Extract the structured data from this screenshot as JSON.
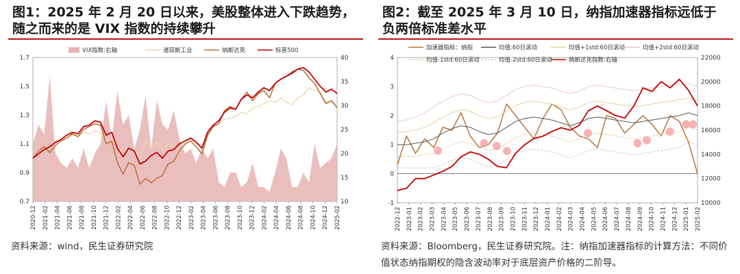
{
  "figure1": {
    "title_line1": "图1：2025 年 2 月 20 日以来，美股整体进入下跌趋势，",
    "title_line2": "随之而来的是 VIX 指数的持续攀升",
    "source": "资料来源：wind，民生证券研究院"
  },
  "figure2": {
    "title_line1": "图2：截至 2025 年 3 月 10 日，纳指加速器指标远低于",
    "title_line2": "负两倍标准差水平",
    "source": "资料来源：Bloomberg，民生证券研究院。注：纳指加速器指标的计算方法：不同价值状态纳指期权的隐含波动率对于底层资产价格的二阶导。"
  },
  "colors": {
    "vix": "#e8b3b3",
    "dow": "#ecd8b0",
    "nasdaq": "#b8743a",
    "sp500": "#c00000",
    "accel": "#b8743a",
    "mean": "#555555",
    "plus1": "#e8cfa0",
    "plus2": "#f0c4c4",
    "minus1": "#e2c89a",
    "minus2": "#c8c8c8",
    "nasdaq_right": "#c00000",
    "marker": "#f2a0a0"
  },
  "chart_data": [
    {
      "type": "line",
      "legend_position": "top",
      "y_left": {
        "min": 0.7,
        "max": 1.7,
        "ticks": [
          "0.7",
          "0.9",
          "1.1",
          "1.3",
          "1.5",
          "1.7"
        ]
      },
      "y_right": {
        "min": 10,
        "max": 40,
        "ticks": [
          "10",
          "15",
          "20",
          "25",
          "30",
          "35",
          "40"
        ]
      },
      "x_ticks": [
        "2020-12",
        "2021-02",
        "2021-04",
        "2021-06",
        "2021-08",
        "2021-10",
        "2021-12",
        "2022-02",
        "2022-04",
        "2022-06",
        "2022-08",
        "2022-10",
        "2022-12",
        "2023-02",
        "2023-04",
        "2023-06",
        "2023-08",
        "2023-10",
        "2023-12",
        "2024-02",
        "2024-04",
        "2024-06",
        "2024-08",
        "2024-10",
        "2024-12",
        "2025-02"
      ],
      "series": [
        {
          "name": "VIX指数:右轴",
          "kind": "area",
          "axis": "right",
          "values": [
            22,
            26,
            24,
            36,
            20,
            18,
            17,
            19,
            17,
            21,
            17,
            20,
            22,
            31,
            23,
            33,
            26,
            28,
            21,
            25,
            32,
            21,
            31,
            26,
            25,
            29,
            23,
            20,
            21,
            18,
            21,
            19,
            21,
            14,
            13,
            16,
            16,
            13,
            14,
            18,
            13,
            13,
            12,
            16,
            21,
            19,
            13,
            13,
            16,
            14,
            22,
            17,
            18,
            19,
            22
          ]
        },
        {
          "name": "道琼斯工业",
          "kind": "line",
          "axis": "left",
          "values": [
            1.0,
            1.02,
            1.05,
            1.08,
            1.12,
            1.13,
            1.14,
            1.16,
            1.15,
            1.18,
            1.17,
            1.19,
            1.18,
            1.12,
            1.13,
            1.08,
            1.04,
            1.06,
            1.07,
            1.0,
            1.12,
            1.07,
            1.11,
            1.06,
            1.1,
            1.08,
            1.06,
            1.08,
            1.14,
            1.13,
            1.07,
            1.15,
            1.23,
            1.24,
            1.27,
            1.28,
            1.29,
            1.32,
            1.31,
            1.35,
            1.36,
            1.38,
            1.4,
            1.39,
            1.42,
            1.39,
            1.37,
            1.42,
            1.44,
            1.49,
            1.47,
            1.46,
            1.39,
            1.4,
            1.37
          ]
        },
        {
          "name": "纳斯达克",
          "kind": "line",
          "axis": "left",
          "values": [
            1.0,
            1.05,
            1.08,
            1.04,
            1.09,
            1.12,
            1.14,
            1.17,
            1.15,
            1.2,
            1.22,
            1.24,
            1.23,
            1.1,
            1.12,
            0.97,
            0.89,
            0.97,
            0.95,
            0.82,
            0.86,
            0.83,
            0.86,
            0.88,
            0.96,
            0.98,
            1.05,
            1.1,
            1.12,
            1.08,
            1.03,
            1.16,
            1.22,
            1.24,
            1.33,
            1.36,
            1.34,
            1.41,
            1.46,
            1.4,
            1.45,
            1.47,
            1.42,
            1.52,
            1.55,
            1.57,
            1.6,
            1.62,
            1.61,
            1.56,
            1.52,
            1.45,
            1.38,
            1.4,
            1.35
          ]
        },
        {
          "name": "标普500",
          "kind": "line",
          "axis": "left",
          "values": [
            1.0,
            1.03,
            1.06,
            1.08,
            1.11,
            1.13,
            1.16,
            1.18,
            1.17,
            1.22,
            1.23,
            1.26,
            1.25,
            1.16,
            1.18,
            1.07,
            1.01,
            1.07,
            1.05,
            0.96,
            0.98,
            1.02,
            1.04,
            1.0,
            1.05,
            1.06,
            1.1,
            1.12,
            1.14,
            1.11,
            1.07,
            1.18,
            1.23,
            1.26,
            1.32,
            1.35,
            1.34,
            1.41,
            1.44,
            1.42,
            1.46,
            1.49,
            1.47,
            1.52,
            1.55,
            1.57,
            1.59,
            1.62,
            1.63,
            1.6,
            1.55,
            1.5,
            1.46,
            1.48,
            1.45
          ]
        }
      ]
    },
    {
      "type": "line",
      "legend_position": "top",
      "y_left": {
        "min": -1,
        "max": 4,
        "ticks": [
          "-1",
          "0",
          "1",
          "2",
          "3",
          "4"
        ]
      },
      "y_right": {
        "min": 10000,
        "max": 22000,
        "ticks": [
          "10000",
          "12000",
          "14000",
          "16000",
          "18000",
          "20000",
          "22000"
        ]
      },
      "x_ticks": [
        "2022-12",
        "2023-01",
        "2023-02",
        "2023-03",
        "2023-04",
        "2023-05",
        "2023-06",
        "2023-07",
        "2023-08",
        "2023-09",
        "2023-10",
        "2023-11",
        "2023-12",
        "2024-01",
        "2024-02",
        "2024-03",
        "2024-04",
        "2024-05",
        "2024-06",
        "2024-07",
        "2024-08",
        "2024-09",
        "2024-10",
        "2024-11",
        "2024-12",
        "2025-01",
        "2025-02"
      ],
      "series": [
        {
          "name": "加速器指标：纳指",
          "kind": "line",
          "axis": "left",
          "values": [
            0.3,
            1.3,
            0.7,
            1.2,
            0.9,
            1.6,
            1.5,
            2.1,
            1.3,
            0.9,
            1.0,
            1.4,
            2.4,
            2.0,
            1.6,
            1.2,
            1.9,
            2.4,
            2.2,
            1.6,
            1.3,
            1.2,
            0.9,
            2.0,
            1.9,
            1.4,
            1.7,
            2.0,
            1.7,
            1.3,
            2.0,
            1.8,
            1.1,
            0.0
          ]
        },
        {
          "name": "均值:60日滚动",
          "kind": "line",
          "axis": "left",
          "values": [
            1.0,
            1.0,
            1.05,
            1.1,
            1.2,
            1.4,
            1.55,
            1.65,
            1.6,
            1.45,
            1.35,
            1.4,
            1.6,
            1.8,
            1.9,
            1.95,
            1.9,
            1.85,
            1.75,
            1.65,
            1.75,
            1.9,
            1.95,
            1.9,
            1.85,
            1.8,
            1.75,
            1.8,
            1.85,
            1.9,
            1.95,
            2.0,
            2.1,
            2.0
          ]
        },
        {
          "name": "均值+1std:60日滚动",
          "kind": "line",
          "axis": "left",
          "values": [
            1.4,
            1.45,
            1.5,
            1.6,
            1.75,
            1.95,
            2.1,
            2.2,
            2.15,
            2.0,
            1.9,
            1.95,
            2.15,
            2.35,
            2.45,
            2.5,
            2.45,
            2.4,
            2.3,
            2.2,
            2.3,
            2.45,
            2.5,
            2.45,
            2.4,
            2.35,
            2.3,
            2.35,
            2.4,
            2.45,
            2.5,
            2.55,
            2.6,
            2.5
          ]
        },
        {
          "name": "均值+2std:60日滚动",
          "kind": "line",
          "axis": "left",
          "values": [
            1.8,
            1.85,
            1.95,
            2.1,
            2.3,
            2.5,
            2.65,
            2.75,
            2.7,
            2.55,
            2.45,
            2.5,
            2.7,
            2.9,
            3.0,
            3.05,
            3.0,
            2.95,
            2.85,
            2.75,
            2.85,
            3.0,
            3.05,
            3.0,
            2.95,
            2.9,
            2.85,
            2.9,
            2.95,
            3.0,
            3.05,
            3.1,
            3.1,
            3.0
          ]
        },
        {
          "name": "均值-1std:60日滚动",
          "kind": "line",
          "axis": "left",
          "values": [
            0.6,
            0.6,
            0.6,
            0.65,
            0.7,
            0.85,
            1.0,
            1.1,
            1.05,
            0.9,
            0.8,
            0.85,
            1.05,
            1.25,
            1.35,
            1.4,
            1.35,
            1.3,
            1.2,
            1.1,
            1.2,
            1.35,
            1.4,
            1.35,
            1.3,
            1.25,
            1.2,
            1.25,
            1.3,
            1.35,
            1.4,
            1.45,
            1.6,
            1.5
          ]
        },
        {
          "name": "均值-2std:60日滚动",
          "kind": "line",
          "axis": "left",
          "values": [
            0.2,
            0.2,
            0.2,
            0.2,
            0.2,
            0.3,
            0.45,
            0.55,
            0.5,
            0.35,
            0.25,
            0.3,
            0.5,
            0.7,
            0.8,
            0.85,
            0.8,
            0.75,
            0.65,
            0.55,
            0.65,
            0.8,
            0.85,
            0.8,
            0.75,
            0.7,
            0.65,
            0.7,
            0.75,
            0.8,
            0.85,
            0.9,
            1.1,
            1.0
          ]
        },
        {
          "name": "纳斯达克指数:右轴",
          "kind": "line",
          "axis": "right",
          "values": [
            11000,
            11200,
            12000,
            12000,
            12300,
            12600,
            13000,
            13800,
            14200,
            14000,
            13600,
            13000,
            12900,
            14100,
            14800,
            15300,
            15500,
            15900,
            16200,
            16000,
            16400,
            17600,
            18000,
            17600,
            17200,
            17000,
            18000,
            19500,
            19200,
            20000,
            19500,
            20200,
            19300,
            18000
          ]
        },
        {
          "name": "低点标记",
          "kind": "markers",
          "axis": "left",
          "x": [
            3.5,
            7.5,
            8.6,
            9.5,
            16.5,
            20.8,
            21.6,
            23.6,
            25.0,
            25.6
          ],
          "values": [
            0.8,
            1.05,
            0.95,
            0.78,
            1.4,
            1.05,
            1.15,
            1.45,
            1.7,
            1.7
          ]
        }
      ]
    }
  ]
}
